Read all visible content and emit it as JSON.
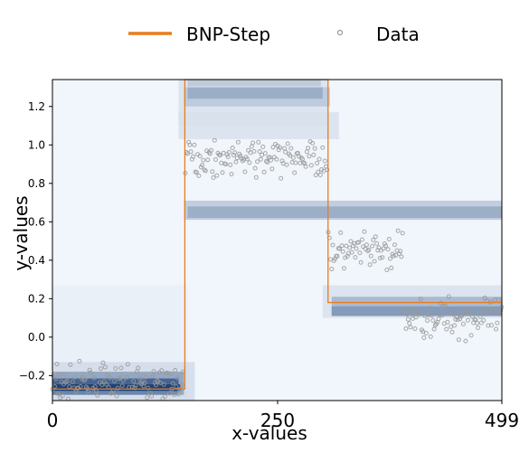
{
  "chart_data": {
    "type": "line",
    "title": "",
    "xlabel": "x-values",
    "ylabel": "y-values",
    "xlim": [
      0,
      499
    ],
    "ylim": [
      -0.33,
      1.34
    ],
    "x_ticks": [
      "0",
      "250",
      "499"
    ],
    "x_tick_values": [
      0,
      250,
      499
    ],
    "y_ticks": [
      "−0.2",
      "0.0",
      "0.2",
      "0.4",
      "0.6",
      "0.8",
      "1.0",
      "1.2"
    ],
    "y_tick_values": [
      -0.2,
      0.0,
      0.2,
      0.4,
      0.6,
      0.8,
      1.0,
      1.2
    ],
    "legend_position": "top-center-outside",
    "legend": [
      {
        "label": "BNP-Step",
        "kind": "line",
        "color": "#e87d1e"
      },
      {
        "label": "Data",
        "kind": "marker",
        "color": "#999999"
      }
    ],
    "colors": {
      "step": "#e87d1e",
      "data": "#999999",
      "heat_light": "#f4f9fe",
      "heat_dark": "#08306b"
    },
    "step_series": {
      "name": "BNP-Step",
      "x": [
        0,
        147,
        147,
        306,
        306,
        499
      ],
      "y": [
        -0.27,
        -0.27,
        1.34,
        1.34,
        0.18,
        0.18
      ]
    },
    "heat_bands": [
      {
        "x0": 0,
        "x1": 499,
        "y0": -0.33,
        "y1": 1.34,
        "intensity": 0.02
      },
      {
        "x0": 0,
        "x1": 150,
        "y0": -0.33,
        "y1": 0.27,
        "intensity": 0.05
      },
      {
        "x0": 0,
        "x1": 158,
        "y0": -0.33,
        "y1": -0.13,
        "intensity": 0.15
      },
      {
        "x0": 0,
        "x1": 146,
        "y0": -0.3,
        "y1": -0.18,
        "intensity": 0.45
      },
      {
        "x0": 0,
        "x1": 142,
        "y0": -0.28,
        "y1": -0.245,
        "intensity": 1.0
      },
      {
        "x0": 0,
        "x1": 140,
        "y0": -0.245,
        "y1": -0.215,
        "intensity": 0.8
      },
      {
        "x0": 0,
        "x1": 139,
        "y0": -0.3,
        "y1": -0.28,
        "intensity": 0.6
      },
      {
        "x0": 140,
        "x1": 306,
        "y0": 1.1,
        "y1": 1.34,
        "intensity": 0.12
      },
      {
        "x0": 140,
        "x1": 318,
        "y0": 1.03,
        "y1": 1.17,
        "intensity": 0.12
      },
      {
        "x0": 146,
        "x1": 308,
        "y0": 1.2,
        "y1": 1.3,
        "intensity": 0.25
      },
      {
        "x0": 150,
        "x1": 300,
        "y0": 1.24,
        "y1": 1.3,
        "intensity": 0.4
      },
      {
        "x0": 150,
        "x1": 298,
        "y0": 1.305,
        "y1": 1.34,
        "intensity": 0.25
      },
      {
        "x0": 146,
        "x1": 499,
        "y0": 0.61,
        "y1": 0.71,
        "intensity": 0.25
      },
      {
        "x0": 150,
        "x1": 499,
        "y0": 0.62,
        "y1": 0.68,
        "intensity": 0.4
      },
      {
        "x0": 300,
        "x1": 499,
        "y0": 0.1,
        "y1": 0.27,
        "intensity": 0.12
      },
      {
        "x0": 310,
        "x1": 499,
        "y0": 0.11,
        "y1": 0.21,
        "intensity": 0.35
      },
      {
        "x0": 310,
        "x1": 499,
        "y0": 0.11,
        "y1": 0.16,
        "intensity": 0.5
      }
    ]
  }
}
